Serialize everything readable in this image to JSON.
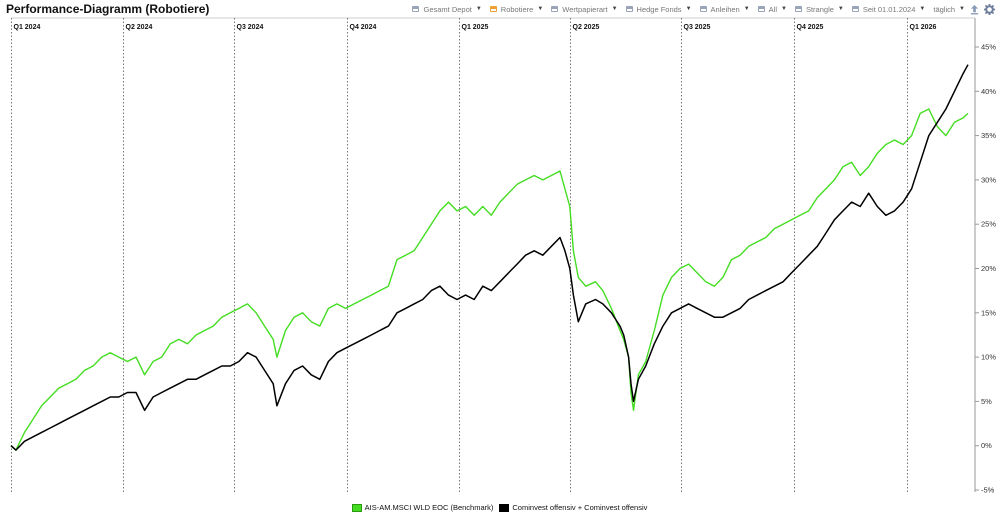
{
  "page": {
    "title": "Performance-Diagramm (Robotiere)"
  },
  "toolbar": {
    "items": [
      {
        "label": "Gesamt Depot",
        "accent": "#9aa4b8"
      },
      {
        "label": "Robotiere",
        "accent": "#f0a030"
      },
      {
        "label": "Wertpapierart",
        "accent": "#9aa4b8"
      },
      {
        "label": "Hedge Fonds",
        "accent": "#9aa4b8"
      },
      {
        "label": "Anleihen",
        "accent": "#9aa4b8"
      },
      {
        "label": "All",
        "accent": "#9aa4b8"
      },
      {
        "label": "Strangle",
        "accent": "#9aa4b8"
      }
    ],
    "date_label": "Seit 01.01.2024",
    "interval_label": "täglich",
    "icons": [
      "upload-icon",
      "gear-icon"
    ]
  },
  "chart_data": {
    "type": "line",
    "title": "Performance-Diagramm (Robotiere)",
    "xlabel": "",
    "ylabel": "",
    "ylim": [
      -5,
      45
    ],
    "yticks": [
      -5,
      0,
      5,
      10,
      15,
      20,
      25,
      30,
      35,
      40,
      45
    ],
    "ytick_labels": [
      "-5%",
      "0%",
      "5%",
      "10%",
      "15%",
      "20%",
      "25%",
      "30%",
      "35%",
      "40%",
      "45%"
    ],
    "y_axis_position": "right",
    "grid": "vertical dotted lines at quarter starts",
    "legend_position": "bottom-center",
    "quarters": [
      {
        "label": "Q1 2024",
        "start": "2024-01-01"
      },
      {
        "label": "Q2 2024",
        "start": "2024-04-01"
      },
      {
        "label": "Q3 2024",
        "start": "2024-07-01"
      },
      {
        "label": "Q4 2024",
        "start": "2024-10-01"
      },
      {
        "label": "Q1 2025",
        "start": "2025-01-01"
      },
      {
        "label": "Q2 2025",
        "start": "2025-04-01"
      },
      {
        "label": "Q3 2025",
        "start": "2025-07-01"
      },
      {
        "label": "Q4 2025",
        "start": "2025-10-01"
      },
      {
        "label": "Q1 2026",
        "start": "2026-01-01"
      }
    ],
    "x_range": [
      "2024-01-01",
      "2026-02-20"
    ],
    "series": [
      {
        "name": "AIS-AM.MSCI WLD EOC (Benchmark)",
        "color": "#44dd22",
        "points": [
          [
            "2024-01-01",
            0.0
          ],
          [
            "2024-01-05",
            -0.5
          ],
          [
            "2024-01-12",
            1.5
          ],
          [
            "2024-01-19",
            3.0
          ],
          [
            "2024-01-26",
            4.5
          ],
          [
            "2024-02-02",
            5.5
          ],
          [
            "2024-02-09",
            6.5
          ],
          [
            "2024-02-16",
            7.0
          ],
          [
            "2024-02-23",
            7.5
          ],
          [
            "2024-03-01",
            8.5
          ],
          [
            "2024-03-08",
            9.0
          ],
          [
            "2024-03-15",
            10.0
          ],
          [
            "2024-03-22",
            10.5
          ],
          [
            "2024-03-29",
            10.0
          ],
          [
            "2024-04-05",
            9.5
          ],
          [
            "2024-04-12",
            10.0
          ],
          [
            "2024-04-19",
            8.0
          ],
          [
            "2024-04-26",
            9.5
          ],
          [
            "2024-05-03",
            10.0
          ],
          [
            "2024-05-10",
            11.5
          ],
          [
            "2024-05-17",
            12.0
          ],
          [
            "2024-05-24",
            11.5
          ],
          [
            "2024-05-31",
            12.5
          ],
          [
            "2024-06-07",
            13.0
          ],
          [
            "2024-06-14",
            13.5
          ],
          [
            "2024-06-21",
            14.5
          ],
          [
            "2024-06-28",
            15.0
          ],
          [
            "2024-07-05",
            15.5
          ],
          [
            "2024-07-12",
            16.0
          ],
          [
            "2024-07-19",
            15.0
          ],
          [
            "2024-07-26",
            13.5
          ],
          [
            "2024-08-02",
            12.0
          ],
          [
            "2024-08-05",
            10.0
          ],
          [
            "2024-08-12",
            13.0
          ],
          [
            "2024-08-19",
            14.5
          ],
          [
            "2024-08-26",
            15.0
          ],
          [
            "2024-09-02",
            14.0
          ],
          [
            "2024-09-09",
            13.5
          ],
          [
            "2024-09-16",
            15.5
          ],
          [
            "2024-09-23",
            16.0
          ],
          [
            "2024-09-30",
            15.5
          ],
          [
            "2024-10-07",
            16.0
          ],
          [
            "2024-10-14",
            16.5
          ],
          [
            "2024-10-21",
            17.0
          ],
          [
            "2024-10-28",
            17.5
          ],
          [
            "2024-11-04",
            18.0
          ],
          [
            "2024-11-11",
            21.0
          ],
          [
            "2024-11-18",
            21.5
          ],
          [
            "2024-11-25",
            22.0
          ],
          [
            "2024-12-02",
            23.5
          ],
          [
            "2024-12-09",
            25.0
          ],
          [
            "2024-12-16",
            26.5
          ],
          [
            "2024-12-23",
            27.5
          ],
          [
            "2024-12-30",
            26.5
          ],
          [
            "2025-01-06",
            27.0
          ],
          [
            "2025-01-13",
            26.0
          ],
          [
            "2025-01-20",
            27.0
          ],
          [
            "2025-01-27",
            26.0
          ],
          [
            "2025-02-03",
            27.5
          ],
          [
            "2025-02-10",
            28.5
          ],
          [
            "2025-02-17",
            29.5
          ],
          [
            "2025-02-24",
            30.0
          ],
          [
            "2025-03-03",
            30.5
          ],
          [
            "2025-03-10",
            30.0
          ],
          [
            "2025-03-17",
            30.5
          ],
          [
            "2025-03-24",
            31.0
          ],
          [
            "2025-03-28",
            29.0
          ],
          [
            "2025-04-01",
            27.0
          ],
          [
            "2025-04-04",
            22.0
          ],
          [
            "2025-04-08",
            19.0
          ],
          [
            "2025-04-14",
            18.0
          ],
          [
            "2025-04-22",
            18.5
          ],
          [
            "2025-04-28",
            17.5
          ],
          [
            "2025-05-05",
            15.5
          ],
          [
            "2025-05-12",
            13.0
          ],
          [
            "2025-05-15",
            12.0
          ],
          [
            "2025-05-19",
            10.0
          ],
          [
            "2025-05-21",
            6.0
          ],
          [
            "2025-05-23",
            4.0
          ],
          [
            "2025-05-27",
            8.0
          ],
          [
            "2025-06-02",
            9.5
          ],
          [
            "2025-06-09",
            13.0
          ],
          [
            "2025-06-16",
            17.0
          ],
          [
            "2025-06-23",
            19.0
          ],
          [
            "2025-06-30",
            20.0
          ],
          [
            "2025-07-07",
            20.5
          ],
          [
            "2025-07-14",
            19.5
          ],
          [
            "2025-07-21",
            18.5
          ],
          [
            "2025-07-28",
            18.0
          ],
          [
            "2025-08-04",
            19.0
          ],
          [
            "2025-08-11",
            21.0
          ],
          [
            "2025-08-18",
            21.5
          ],
          [
            "2025-08-25",
            22.5
          ],
          [
            "2025-09-01",
            23.0
          ],
          [
            "2025-09-08",
            23.5
          ],
          [
            "2025-09-15",
            24.5
          ],
          [
            "2025-09-22",
            25.0
          ],
          [
            "2025-09-29",
            25.5
          ],
          [
            "2025-10-06",
            26.0
          ],
          [
            "2025-10-13",
            26.5
          ],
          [
            "2025-10-20",
            28.0
          ],
          [
            "2025-10-27",
            29.0
          ],
          [
            "2025-11-03",
            30.0
          ],
          [
            "2025-11-10",
            31.5
          ],
          [
            "2025-11-17",
            32.0
          ],
          [
            "2025-11-24",
            30.5
          ],
          [
            "2025-12-01",
            31.5
          ],
          [
            "2025-12-08",
            33.0
          ],
          [
            "2025-12-15",
            34.0
          ],
          [
            "2025-12-22",
            34.5
          ],
          [
            "2025-12-29",
            34.0
          ],
          [
            "2026-01-05",
            35.0
          ],
          [
            "2026-01-12",
            37.5
          ],
          [
            "2026-01-19",
            38.0
          ],
          [
            "2026-01-26",
            36.0
          ],
          [
            "2026-02-02",
            35.0
          ],
          [
            "2026-02-09",
            36.5
          ],
          [
            "2026-02-16",
            37.0
          ],
          [
            "2026-02-20",
            37.5
          ]
        ]
      },
      {
        "name": "Cominvest offensiv + Cominvest offensiv",
        "color": "#000000",
        "points": [
          [
            "2024-01-01",
            0.0
          ],
          [
            "2024-01-05",
            -0.5
          ],
          [
            "2024-01-12",
            0.5
          ],
          [
            "2024-01-19",
            1.0
          ],
          [
            "2024-01-26",
            1.5
          ],
          [
            "2024-02-02",
            2.0
          ],
          [
            "2024-02-09",
            2.5
          ],
          [
            "2024-02-16",
            3.0
          ],
          [
            "2024-02-23",
            3.5
          ],
          [
            "2024-03-01",
            4.0
          ],
          [
            "2024-03-08",
            4.5
          ],
          [
            "2024-03-15",
            5.0
          ],
          [
            "2024-03-22",
            5.5
          ],
          [
            "2024-03-29",
            5.5
          ],
          [
            "2024-04-05",
            6.0
          ],
          [
            "2024-04-12",
            6.0
          ],
          [
            "2024-04-19",
            4.0
          ],
          [
            "2024-04-26",
            5.5
          ],
          [
            "2024-05-03",
            6.0
          ],
          [
            "2024-05-10",
            6.5
          ],
          [
            "2024-05-17",
            7.0
          ],
          [
            "2024-05-24",
            7.5
          ],
          [
            "2024-05-31",
            7.5
          ],
          [
            "2024-06-07",
            8.0
          ],
          [
            "2024-06-14",
            8.5
          ],
          [
            "2024-06-21",
            9.0
          ],
          [
            "2024-06-28",
            9.0
          ],
          [
            "2024-07-05",
            9.5
          ],
          [
            "2024-07-12",
            10.5
          ],
          [
            "2024-07-19",
            10.0
          ],
          [
            "2024-07-26",
            8.5
          ],
          [
            "2024-08-02",
            7.0
          ],
          [
            "2024-08-05",
            4.5
          ],
          [
            "2024-08-12",
            7.0
          ],
          [
            "2024-08-19",
            8.5
          ],
          [
            "2024-08-26",
            9.0
          ],
          [
            "2024-09-02",
            8.0
          ],
          [
            "2024-09-09",
            7.5
          ],
          [
            "2024-09-16",
            9.5
          ],
          [
            "2024-09-23",
            10.5
          ],
          [
            "2024-09-30",
            11.0
          ],
          [
            "2024-10-07",
            11.5
          ],
          [
            "2024-10-14",
            12.0
          ],
          [
            "2024-10-21",
            12.5
          ],
          [
            "2024-10-28",
            13.0
          ],
          [
            "2024-11-04",
            13.5
          ],
          [
            "2024-11-11",
            15.0
          ],
          [
            "2024-11-18",
            15.5
          ],
          [
            "2024-11-25",
            16.0
          ],
          [
            "2024-12-02",
            16.5
          ],
          [
            "2024-12-09",
            17.5
          ],
          [
            "2024-12-16",
            18.0
          ],
          [
            "2024-12-23",
            17.0
          ],
          [
            "2024-12-30",
            16.5
          ],
          [
            "2025-01-06",
            17.0
          ],
          [
            "2025-01-13",
            16.5
          ],
          [
            "2025-01-20",
            18.0
          ],
          [
            "2025-01-27",
            17.5
          ],
          [
            "2025-02-03",
            18.5
          ],
          [
            "2025-02-10",
            19.5
          ],
          [
            "2025-02-17",
            20.5
          ],
          [
            "2025-02-24",
            21.5
          ],
          [
            "2025-03-03",
            22.0
          ],
          [
            "2025-03-10",
            21.5
          ],
          [
            "2025-03-17",
            22.5
          ],
          [
            "2025-03-24",
            23.5
          ],
          [
            "2025-03-28",
            22.0
          ],
          [
            "2025-04-01",
            20.0
          ],
          [
            "2025-04-04",
            17.0
          ],
          [
            "2025-04-08",
            14.0
          ],
          [
            "2025-04-14",
            16.0
          ],
          [
            "2025-04-22",
            16.5
          ],
          [
            "2025-04-28",
            16.0
          ],
          [
            "2025-05-05",
            15.0
          ],
          [
            "2025-05-12",
            13.5
          ],
          [
            "2025-05-15",
            12.5
          ],
          [
            "2025-05-19",
            10.0
          ],
          [
            "2025-05-21",
            7.0
          ],
          [
            "2025-05-23",
            5.0
          ],
          [
            "2025-05-27",
            7.5
          ],
          [
            "2025-06-02",
            9.0
          ],
          [
            "2025-06-09",
            11.5
          ],
          [
            "2025-06-16",
            13.5
          ],
          [
            "2025-06-23",
            15.0
          ],
          [
            "2025-06-30",
            15.5
          ],
          [
            "2025-07-07",
            16.0
          ],
          [
            "2025-07-14",
            15.5
          ],
          [
            "2025-07-21",
            15.0
          ],
          [
            "2025-07-28",
            14.5
          ],
          [
            "2025-08-04",
            14.5
          ],
          [
            "2025-08-11",
            15.0
          ],
          [
            "2025-08-18",
            15.5
          ],
          [
            "2025-08-25",
            16.5
          ],
          [
            "2025-09-01",
            17.0
          ],
          [
            "2025-09-08",
            17.5
          ],
          [
            "2025-09-15",
            18.0
          ],
          [
            "2025-09-22",
            18.5
          ],
          [
            "2025-09-29",
            19.5
          ],
          [
            "2025-10-06",
            20.5
          ],
          [
            "2025-10-13",
            21.5
          ],
          [
            "2025-10-20",
            22.5
          ],
          [
            "2025-10-27",
            24.0
          ],
          [
            "2025-11-03",
            25.5
          ],
          [
            "2025-11-10",
            26.5
          ],
          [
            "2025-11-17",
            27.5
          ],
          [
            "2025-11-24",
            27.0
          ],
          [
            "2025-12-01",
            28.5
          ],
          [
            "2025-12-08",
            27.0
          ],
          [
            "2025-12-15",
            26.0
          ],
          [
            "2025-12-22",
            26.5
          ],
          [
            "2025-12-29",
            27.5
          ],
          [
            "2026-01-05",
            29.0
          ],
          [
            "2026-01-12",
            32.0
          ],
          [
            "2026-01-19",
            35.0
          ],
          [
            "2026-01-26",
            36.5
          ],
          [
            "2026-02-02",
            38.0
          ],
          [
            "2026-02-09",
            40.0
          ],
          [
            "2026-02-16",
            42.0
          ],
          [
            "2026-02-20",
            43.0
          ]
        ]
      }
    ]
  }
}
